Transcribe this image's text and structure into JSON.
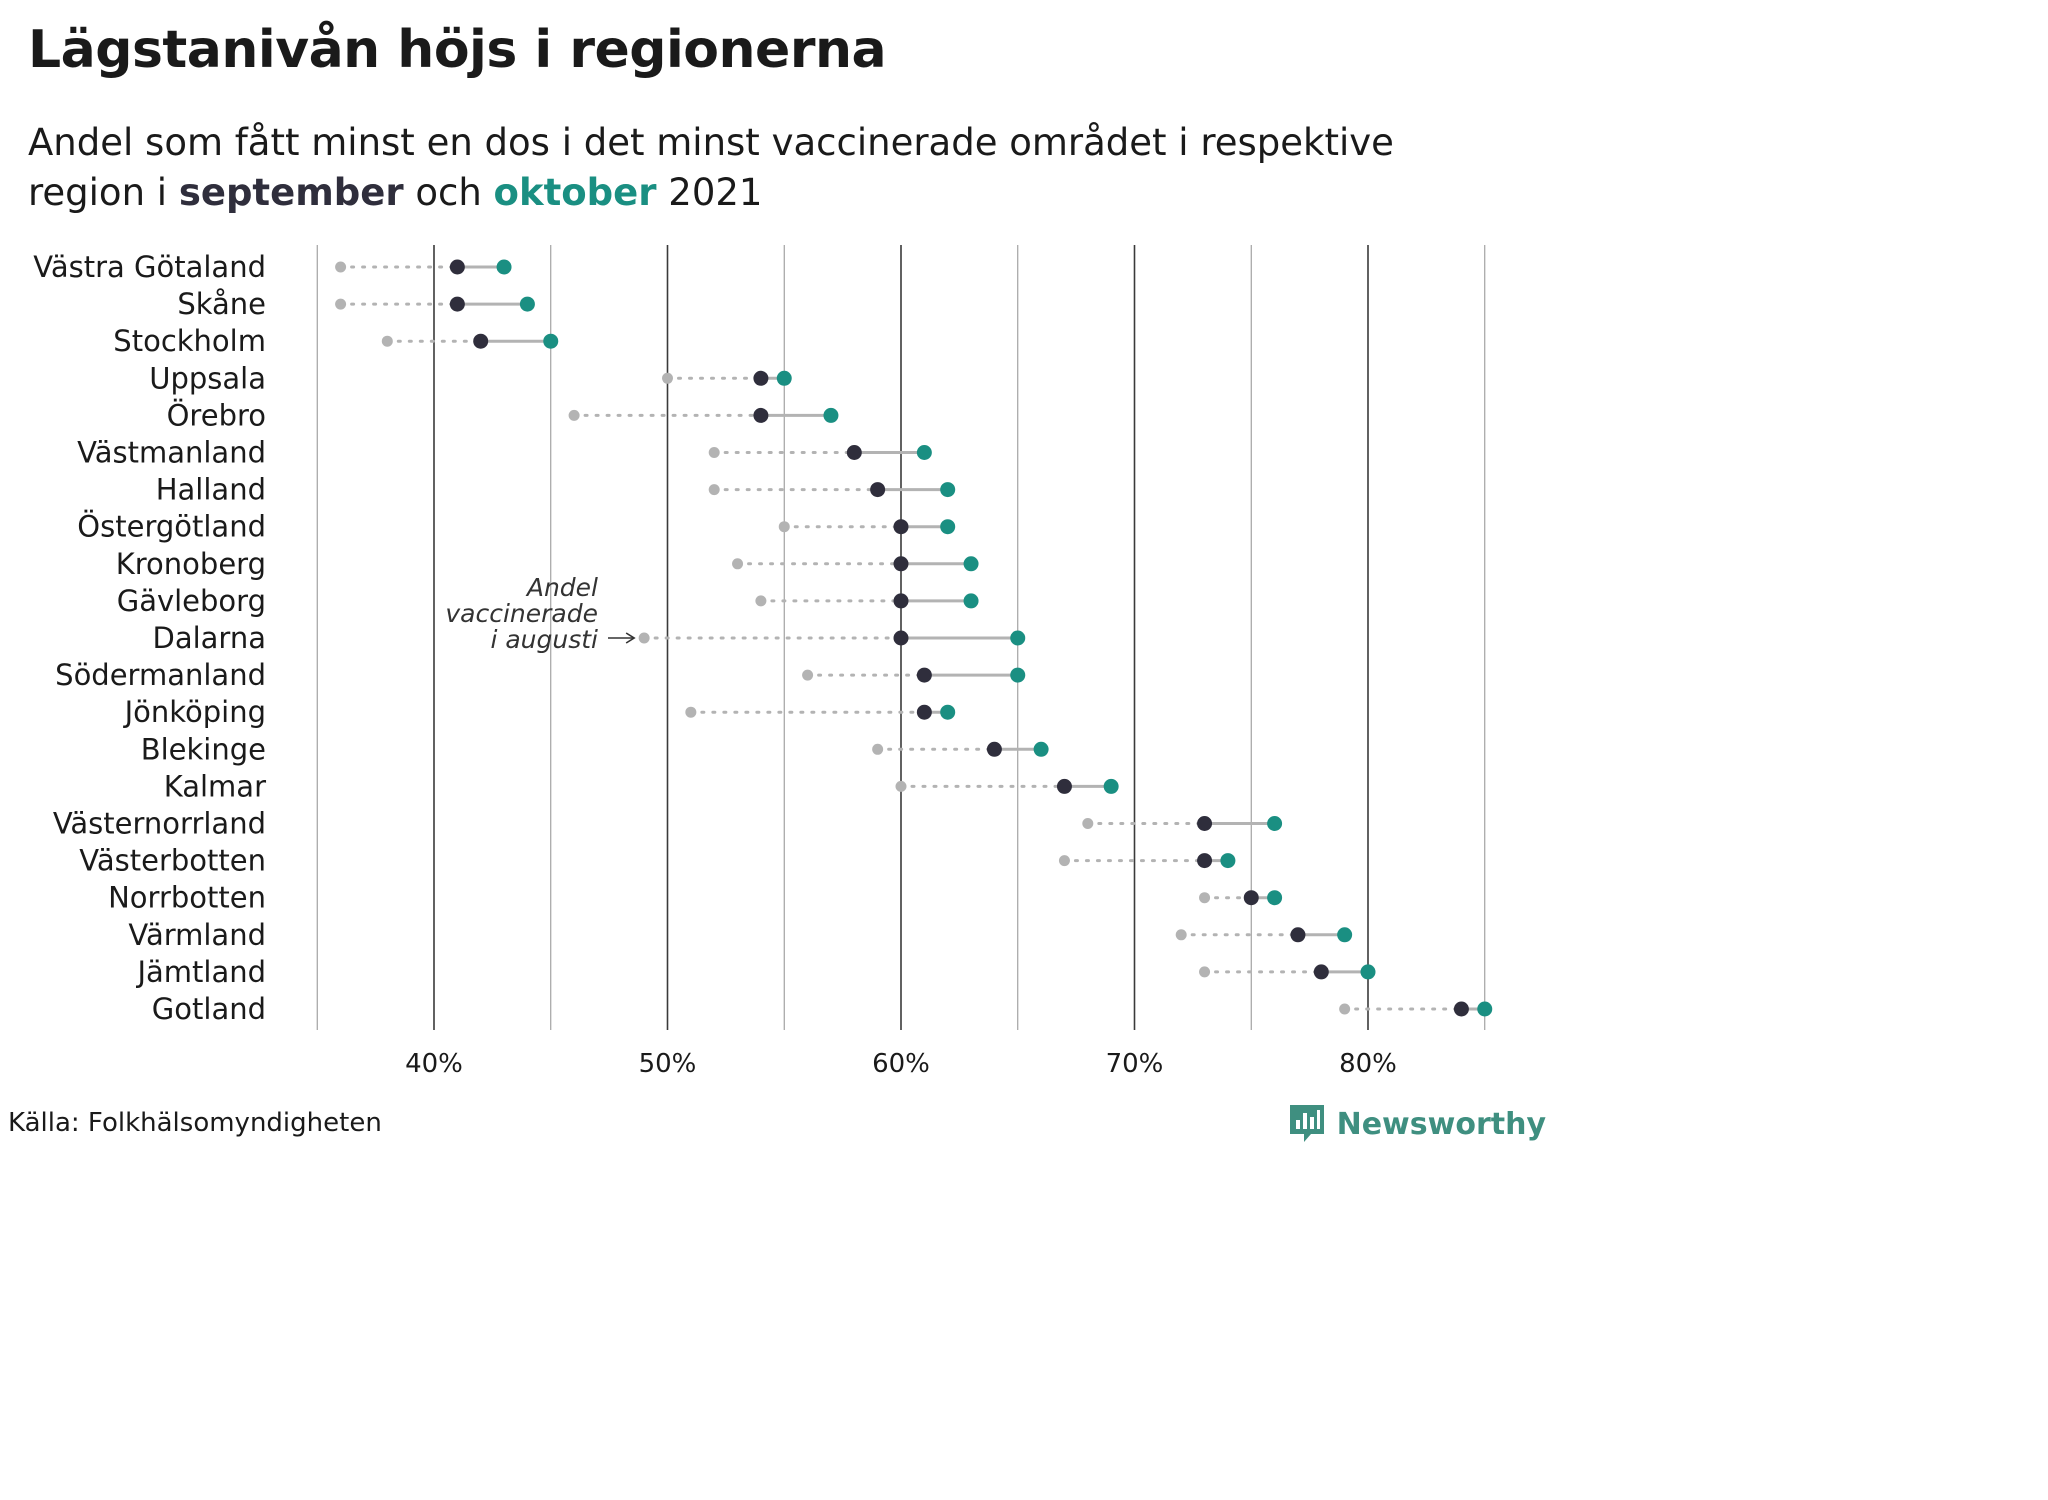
{
  "title": "Lägstanivån höjs i regionerna",
  "subtitle": {
    "line1": "Andel som fått minst en dos i det minst vaccinerade området i respektive",
    "line2_pre": "region i ",
    "sep_word": "september",
    "mid": " och ",
    "oct_word": "oktober",
    "year": " 2021"
  },
  "colors": {
    "august": "#b3b3b3",
    "september": "#2f2e3c",
    "october": "#1a8f82",
    "connector": "#b3b3b3",
    "grid_major": "#3a3a3a",
    "grid_minor": "#9a9a9a",
    "brand": "#3f8f80"
  },
  "chart_data": {
    "type": "dumbbell",
    "categories": [
      "Västra Götaland",
      "Skåne",
      "Stockholm",
      "Uppsala",
      "Örebro",
      "Västmanland",
      "Halland",
      "Östergötland",
      "Kronoberg",
      "Gävleborg",
      "Dalarna",
      "Södermanland",
      "Jönköping",
      "Blekinge",
      "Kalmar",
      "Västernorrland",
      "Västerbotten",
      "Norrbotten",
      "Värmland",
      "Jämtland",
      "Gotland"
    ],
    "series": [
      {
        "key": "august",
        "values": [
          36,
          36,
          38,
          50,
          46,
          52,
          52,
          55,
          53,
          54,
          49,
          56,
          51,
          59,
          60,
          68,
          67,
          73,
          72,
          73,
          79
        ]
      },
      {
        "key": "september",
        "values": [
          41,
          41,
          42,
          54,
          54,
          58,
          59,
          60,
          60,
          60,
          60,
          61,
          61,
          64,
          67,
          73,
          73,
          75,
          77,
          78,
          84
        ]
      },
      {
        "key": "october",
        "values": [
          43,
          44,
          45,
          55,
          57,
          61,
          62,
          62,
          63,
          63,
          65,
          65,
          62,
          66,
          69,
          76,
          74,
          76,
          79,
          80,
          85
        ]
      }
    ],
    "xlim": [
      35,
      85
    ],
    "x_ticks": [
      40,
      50,
      60,
      70,
      80
    ],
    "x_tick_labels": [
      "40%",
      "50%",
      "60%",
      "70%",
      "80%"
    ],
    "grid": true,
    "annotation": {
      "lines": [
        "Andel",
        "vaccinerade",
        "i augusti"
      ],
      "points_to": "Dalarna"
    }
  },
  "source": "Källa: Folkhälsomyndigheten",
  "brand": {
    "name": "Newsworthy",
    "icon": "newsworthy-logo-icon"
  }
}
